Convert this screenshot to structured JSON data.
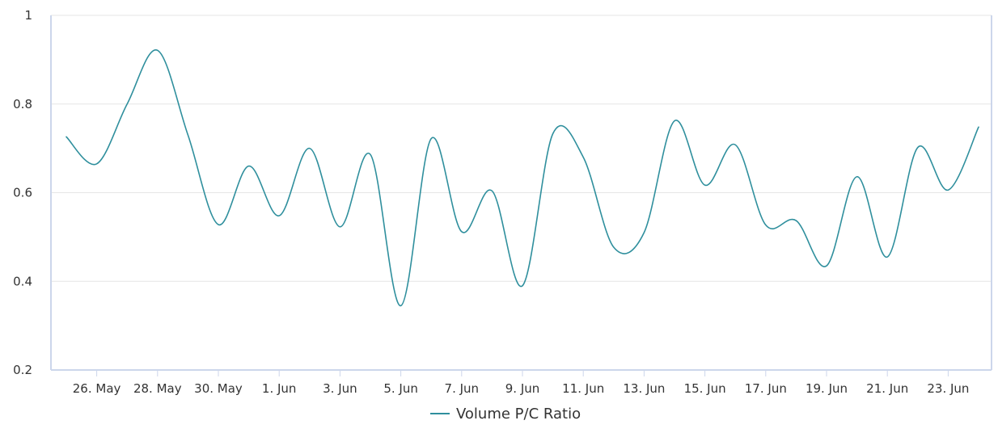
{
  "colors": {
    "series": "#2f8f9d",
    "grid": "#e6e6e6",
    "plot_border": "#ccd6eb",
    "text": "#333333"
  },
  "chart_data": {
    "type": "line",
    "title": "",
    "xlabel": "",
    "ylabel": "",
    "ylim": [
      0.2,
      1
    ],
    "y_ticks": [
      0.2,
      0.4,
      0.6,
      0.8,
      1
    ],
    "y_tick_labels": [
      "0.2",
      "0.4",
      "0.6",
      "0.8",
      "1"
    ],
    "x_range": [
      "2021-05-25",
      "2021-06-24"
    ],
    "x_ticks": [
      "2021-05-26",
      "2021-05-28",
      "2021-05-30",
      "2021-06-01",
      "2021-06-03",
      "2021-06-05",
      "2021-06-07",
      "2021-06-09",
      "2021-06-11",
      "2021-06-13",
      "2021-06-15",
      "2021-06-17",
      "2021-06-19",
      "2021-06-21",
      "2021-06-23"
    ],
    "x_tick_labels": [
      "26. May",
      "28. May",
      "30. May",
      "1. Jun",
      "3. Jun",
      "5. Jun",
      "7. Jun",
      "9. Jun",
      "11. Jun",
      "13. Jun",
      "15. Jun",
      "17. Jun",
      "19. Jun",
      "21. Jun",
      "23. Jun"
    ],
    "grid": true,
    "legend_position": "bottom-center",
    "series": [
      {
        "name": "Volume P/C Ratio",
        "x": [
          "2021-05-25",
          "2021-05-26",
          "2021-05-27",
          "2021-05-28",
          "2021-05-29",
          "2021-05-30",
          "2021-05-31",
          "2021-06-01",
          "2021-06-02",
          "2021-06-03",
          "2021-06-04",
          "2021-06-05",
          "2021-06-06",
          "2021-06-07",
          "2021-06-08",
          "2021-06-09",
          "2021-06-10",
          "2021-06-11",
          "2021-06-12",
          "2021-06-13",
          "2021-06-14",
          "2021-06-15",
          "2021-06-16",
          "2021-06-17",
          "2021-06-18",
          "2021-06-19",
          "2021-06-20",
          "2021-06-21",
          "2021-06-22",
          "2021-06-23",
          "2021-06-24"
        ],
        "values": [
          0.726,
          0.665,
          0.8,
          0.921,
          0.73,
          0.528,
          0.66,
          0.548,
          0.7,
          0.523,
          0.686,
          0.345,
          0.722,
          0.512,
          0.604,
          0.39,
          0.733,
          0.68,
          0.477,
          0.51,
          0.762,
          0.617,
          0.708,
          0.527,
          0.537,
          0.435,
          0.636,
          0.455,
          0.702,
          0.606,
          0.748
        ]
      }
    ]
  }
}
